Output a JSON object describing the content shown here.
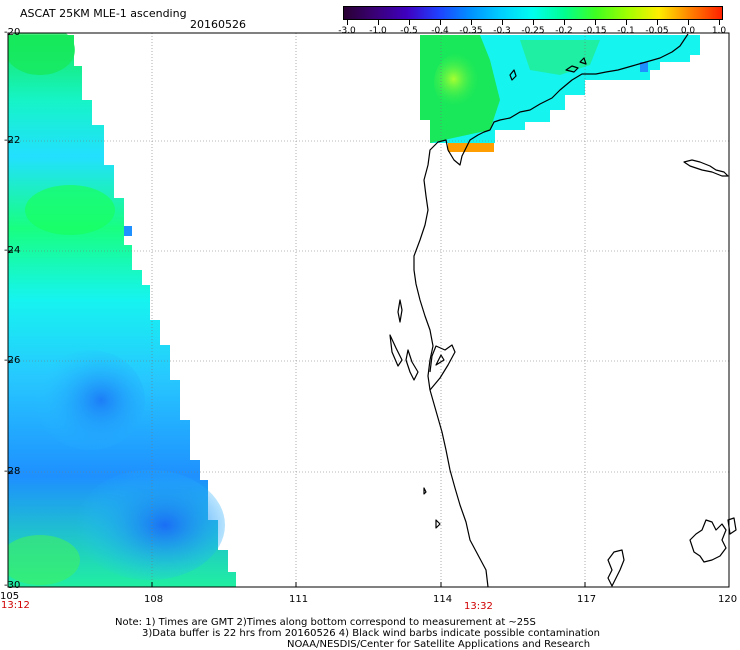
{
  "header": {
    "title": "ASCAT 25KM MLE-1 ascending",
    "date": "20160526"
  },
  "colorbar": {
    "ticks": [
      "-3.0",
      "-1.0",
      "-0.5",
      "-0.4",
      "-0.35",
      "-0.3",
      "-0.25",
      "-0.2",
      "-0.15",
      "-0.1",
      "-0.05",
      "0.0",
      "1.0"
    ],
    "colors": [
      "#2a0033",
      "#3a0077",
      "#3f00c0",
      "#2040ff",
      "#0090ff",
      "#00d0ff",
      "#00ffee",
      "#00ff90",
      "#40ff20",
      "#a0ff00",
      "#ffee00",
      "#ff8000",
      "#ff2000"
    ]
  },
  "axes": {
    "lat_labels": [
      "-20",
      "-22",
      "-24",
      "-26",
      "-28",
      "-30"
    ],
    "lon_labels": [
      "105",
      "108",
      "111",
      "114",
      "117",
      "120"
    ]
  },
  "time_labels": {
    "left": "13:12",
    "middle": "13:32"
  },
  "notes": {
    "line1": "Note: 1) Times are GMT 2)Times along bottom correspond to measurement at ~25S",
    "line2": "3)Data buffer is 22 hrs from 20160526 4) Black wind barbs indicate possible contamination",
    "line3": "NOAA/NESDIS/Center for Satellite Applications and Research"
  },
  "palette": {
    "green": "#18e85a",
    "light_green": "#7dff3a",
    "cyan": "#16f4f0",
    "sky": "#27c8ff",
    "blue": "#1e90ff",
    "deep_blue": "#1a6ef5",
    "orange": "#ff9e00",
    "coast": "#000000",
    "grid": "#777777"
  }
}
